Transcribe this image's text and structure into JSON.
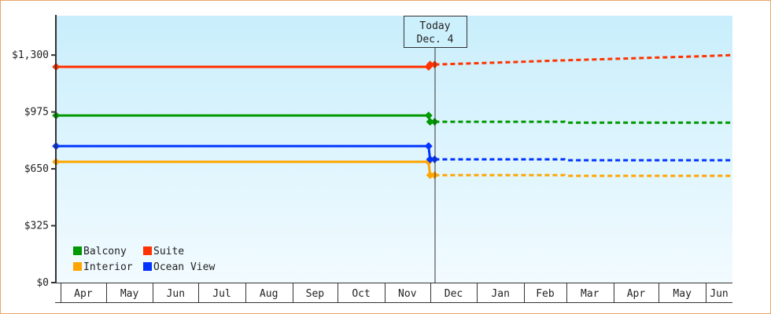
{
  "chart_data": {
    "type": "line",
    "title": "",
    "xlabel": "",
    "ylabel": "",
    "ylim": [
      0,
      1525
    ],
    "yticks": [
      0,
      325,
      650,
      975,
      1300
    ],
    "ytick_labels": [
      "$0",
      "$325",
      "$650",
      "$975",
      "$1,300"
    ],
    "x_categories": [
      "Apr",
      "May",
      "Jun",
      "Jul",
      "Aug",
      "Sep",
      "Oct",
      "Nov",
      "Dec",
      "Jan",
      "Feb",
      "Mar",
      "Apr",
      "May",
      "Jun"
    ],
    "today_marker": {
      "line1": "Today",
      "line2": "Dec. 4",
      "date": "Dec 4"
    },
    "grid": false,
    "legend_placement": "bottom-left",
    "background": [
      "#c9eefc",
      "#f2fbff"
    ],
    "series": [
      {
        "name": "Balcony",
        "color": "#009900",
        "historical": [
          [
            "Mar 29",
            955
          ],
          [
            "Nov 30",
            955
          ],
          [
            "Dec 1",
            919
          ],
          [
            "Dec 4",
            919
          ]
        ],
        "forecast": [
          [
            "Dec 4",
            919
          ],
          [
            "Feb 28",
            919
          ],
          [
            "Mar 1",
            914
          ],
          [
            "Jun 18",
            914
          ]
        ]
      },
      {
        "name": "Suite",
        "color": "#ff3300",
        "historical": [
          [
            "Mar 29",
            1233
          ],
          [
            "Nov 30",
            1233
          ],
          [
            "Dec 1",
            1246
          ],
          [
            "Dec 4",
            1246
          ]
        ],
        "forecast": [
          [
            "Dec 4",
            1246
          ],
          [
            "Feb 1",
            1262
          ],
          [
            "Feb 20",
            1268
          ],
          [
            "Jun 1",
            1294
          ],
          [
            "Jun 18",
            1300
          ]
        ]
      },
      {
        "name": "Interior",
        "color": "#ffa500",
        "historical": [
          [
            "Mar 29",
            690
          ],
          [
            "Nov 30",
            690
          ],
          [
            "Dec 1",
            614
          ],
          [
            "Dec 4",
            614
          ]
        ],
        "forecast": [
          [
            "Dec 4",
            614
          ],
          [
            "Feb 28",
            614
          ],
          [
            "Mar 1",
            610
          ],
          [
            "Jun 18",
            610
          ]
        ]
      },
      {
        "name": "Ocean View",
        "color": "#0033ff",
        "historical": [
          [
            "Mar 29",
            780
          ],
          [
            "Nov 30",
            780
          ],
          [
            "Dec 1",
            704
          ],
          [
            "Dec 4",
            704
          ]
        ],
        "forecast": [
          [
            "Dec 4",
            704
          ],
          [
            "Feb 28",
            704
          ],
          [
            "Mar 1",
            699
          ],
          [
            "Jun 18",
            699
          ]
        ]
      }
    ]
  }
}
